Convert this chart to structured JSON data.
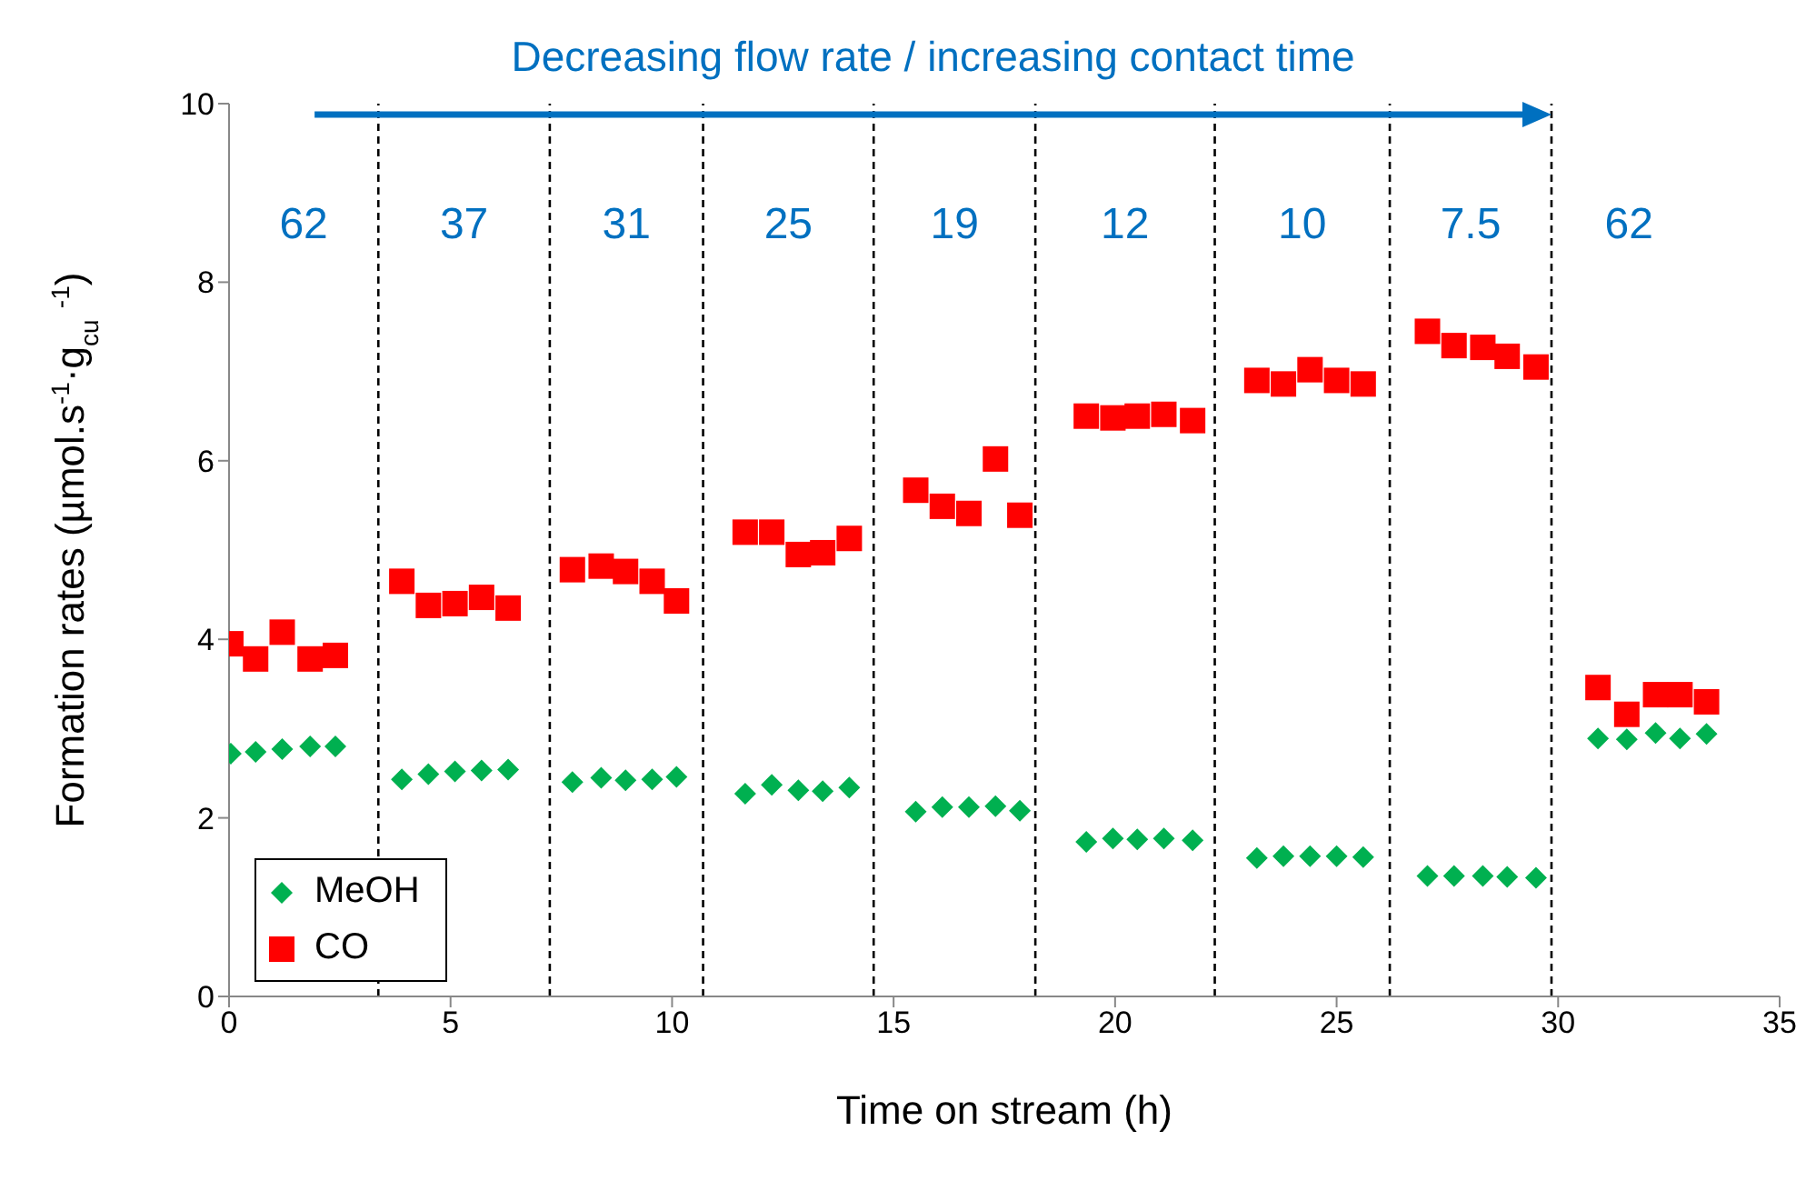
{
  "chart_data": {
    "type": "scatter",
    "xlabel": "Time on stream (h)",
    "ylabel": "Formation rates (µmol.s$^{-1}$·g$_{cu}$ $^{-1}$)",
    "xlim": [
      0,
      35
    ],
    "xticks": [
      0,
      5,
      10,
      15,
      20,
      25,
      30,
      35
    ],
    "ylim": [
      0,
      10
    ],
    "yticks": [
      0,
      2,
      4,
      6,
      8,
      10
    ],
    "legend": "bottom left",
    "x": [
      0.04,
      0.6,
      1.2,
      1.83,
      2.4,
      3.9,
      4.5,
      5.1,
      5.7,
      6.3,
      7.75,
      8.4,
      8.95,
      9.55,
      10.1,
      11.65,
      12.25,
      12.85,
      13.4,
      14.0,
      15.5,
      16.1,
      16.7,
      17.3,
      17.85,
      19.35,
      19.95,
      20.5,
      21.1,
      21.75,
      23.2,
      23.8,
      24.4,
      25.0,
      25.6,
      27.05,
      27.65,
      28.3,
      28.85,
      29.5,
      30.9,
      31.55,
      32.2,
      32.75,
      33.35
    ],
    "series": [
      {
        "name": "MeOH",
        "color": "#00b050",
        "marker": "diamond",
        "values": [
          2.72,
          2.74,
          2.77,
          2.8,
          2.8,
          2.43,
          2.49,
          2.52,
          2.53,
          2.54,
          2.4,
          2.45,
          2.42,
          2.43,
          2.46,
          2.27,
          2.37,
          2.31,
          2.3,
          2.34,
          2.07,
          2.12,
          2.12,
          2.13,
          2.08,
          1.73,
          1.77,
          1.76,
          1.77,
          1.75,
          1.55,
          1.57,
          1.57,
          1.57,
          1.56,
          1.35,
          1.35,
          1.35,
          1.34,
          1.33,
          2.89,
          2.88,
          2.95,
          2.89,
          2.94
        ]
      },
      {
        "name": "CO",
        "color": "#ff0000",
        "marker": "square",
        "values": [
          3.95,
          3.78,
          4.08,
          3.78,
          3.82,
          4.65,
          4.38,
          4.4,
          4.47,
          4.35,
          4.78,
          4.82,
          4.76,
          4.65,
          4.43,
          5.2,
          5.2,
          4.95,
          4.97,
          5.13,
          5.67,
          5.49,
          5.41,
          6.02,
          5.39,
          6.5,
          6.48,
          6.5,
          6.52,
          6.45,
          6.9,
          6.86,
          7.02,
          6.9,
          6.86,
          7.45,
          7.29,
          7.27,
          7.17,
          7.05,
          3.46,
          3.16,
          3.38,
          3.38,
          3.3
        ]
      }
    ],
    "ref_lines": [
      {
        "axis": "x",
        "value": 3.37,
        "color": "#000000",
        "line_style": "dashed"
      },
      {
        "axis": "x",
        "value": 7.24,
        "color": "#000000",
        "line_style": "dashed"
      },
      {
        "axis": "x",
        "value": 10.7,
        "color": "#000000",
        "line_style": "dashed"
      },
      {
        "axis": "x",
        "value": 14.55,
        "color": "#000000",
        "line_style": "dashed"
      },
      {
        "axis": "x",
        "value": 18.2,
        "color": "#000000",
        "line_style": "dashed"
      },
      {
        "axis": "x",
        "value": 22.25,
        "color": "#000000",
        "line_style": "dashed"
      },
      {
        "axis": "x",
        "value": 26.2,
        "color": "#000000",
        "line_style": "dashed"
      },
      {
        "axis": "x",
        "value": 29.85,
        "color": "#000000",
        "line_style": "dashed"
      }
    ],
    "annotations": [
      "Decreasing flow rate / increasing contact time",
      "62",
      "37",
      "31",
      "25",
      "19",
      "12",
      "10",
      "7.5",
      "62"
    ]
  }
}
